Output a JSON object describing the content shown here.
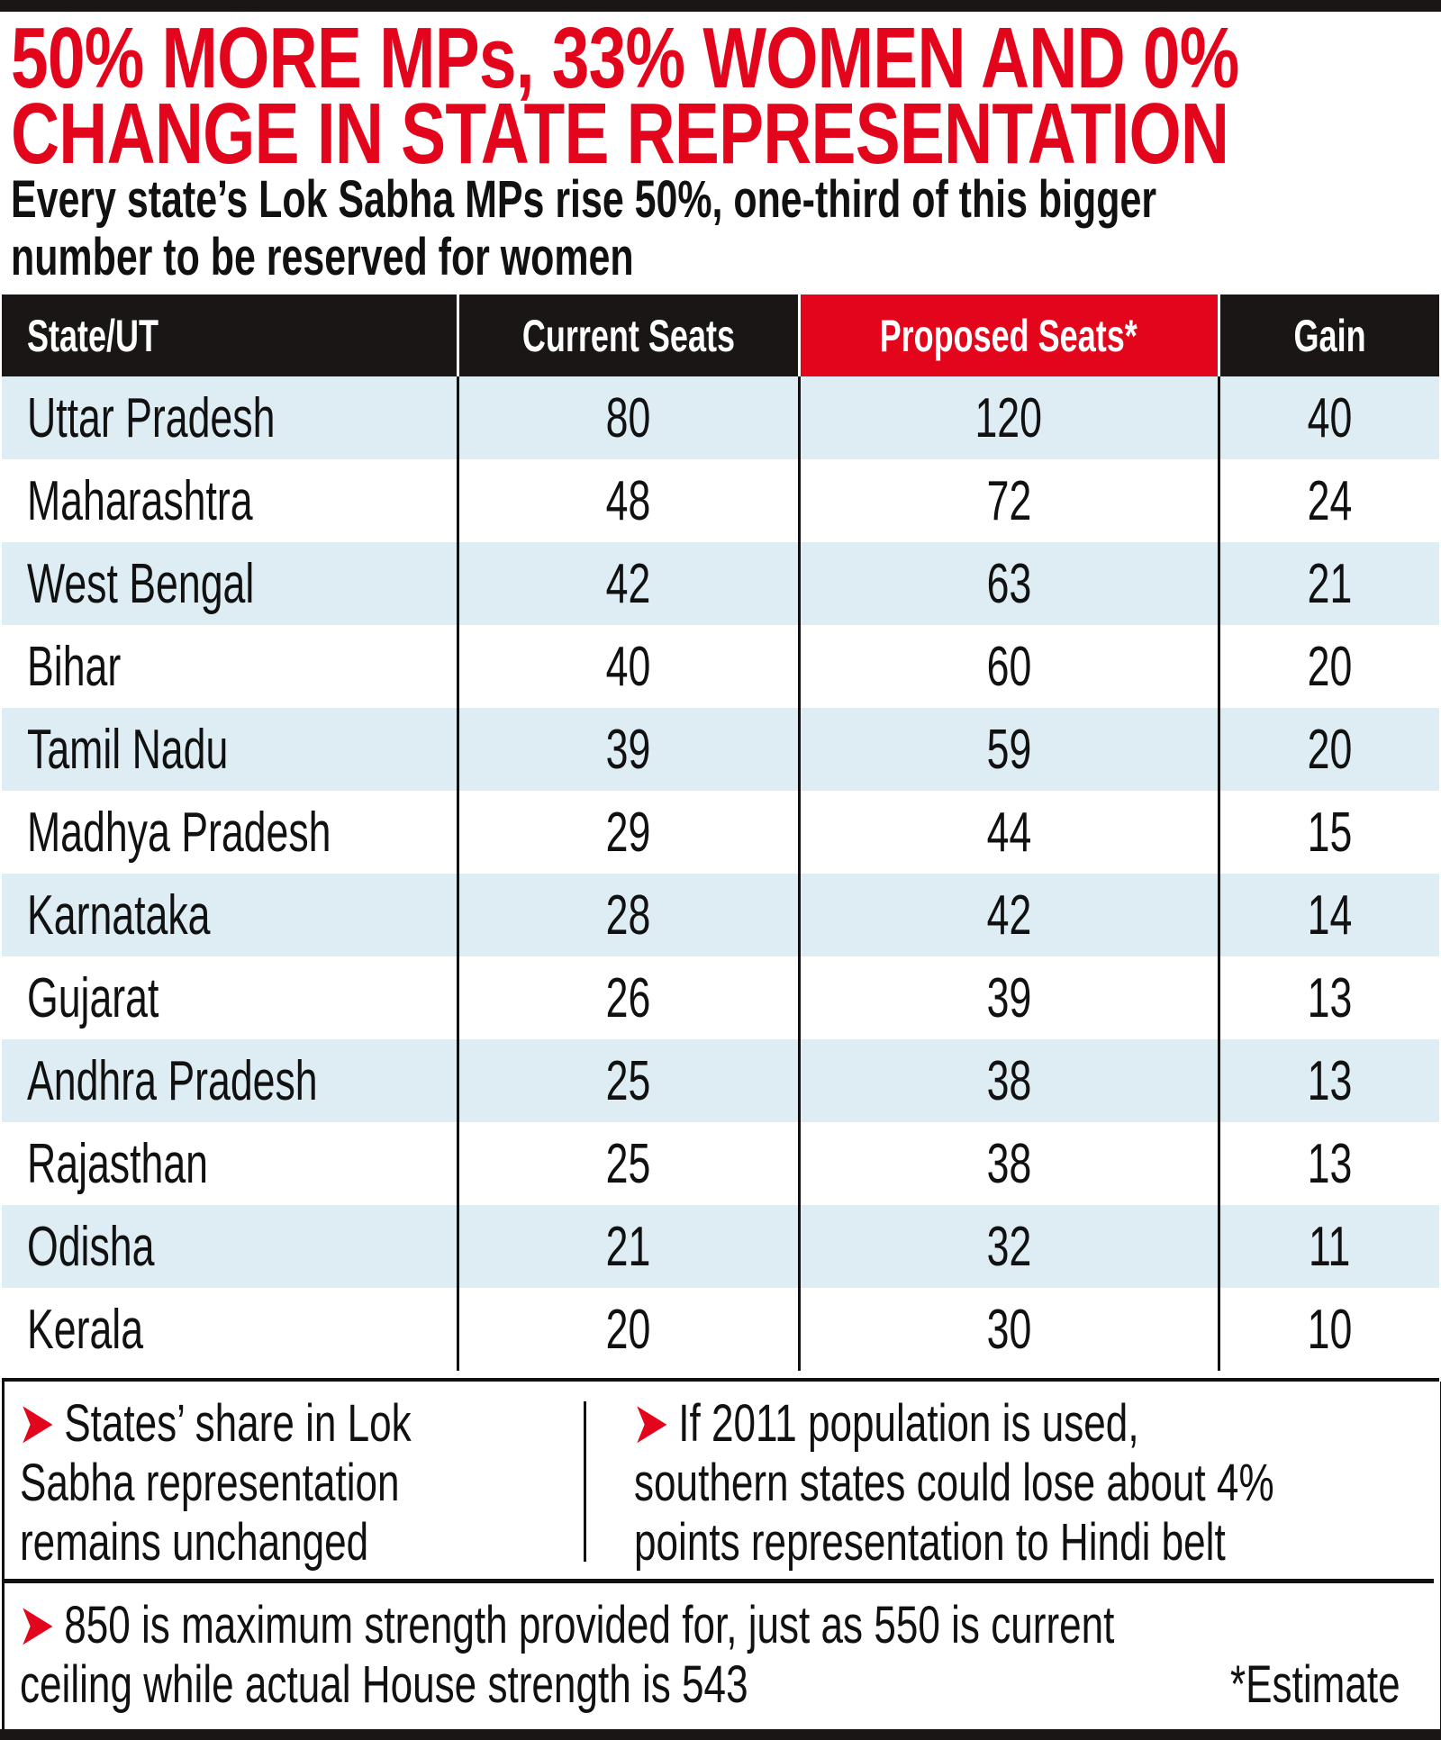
{
  "title_lines": [
    "50% MORE MPs, 33% WOMEN AND 0%",
    "CHANGE IN STATE REPRESENTATION"
  ],
  "subtitle_lines": [
    "Every state’s Lok Sabha MPs rise 50%, one-third of this bigger",
    "number to be reserved for women"
  ],
  "colors": {
    "accent_red": "#e3051b",
    "header_black": "#1a1616",
    "row_alt": "#ddedf3"
  },
  "table": {
    "headers": [
      "State/UT",
      "Current Seats",
      "Proposed Seats*",
      "Gain"
    ],
    "rows": [
      [
        "Uttar Pradesh",
        "80",
        "120",
        "40"
      ],
      [
        "Maharashtra",
        "48",
        "72",
        "24"
      ],
      [
        "West Bengal",
        "42",
        "63",
        "21"
      ],
      [
        "Bihar",
        "40",
        "60",
        "20"
      ],
      [
        "Tamil Nadu",
        "39",
        "59",
        "20"
      ],
      [
        "Madhya Pradesh",
        "29",
        "44",
        "15"
      ],
      [
        "Karnataka",
        "28",
        "42",
        "14"
      ],
      [
        "Gujarat",
        "26",
        "39",
        "13"
      ],
      [
        "Andhra Pradesh",
        "25",
        "38",
        "13"
      ],
      [
        "Rajasthan",
        "25",
        "38",
        "13"
      ],
      [
        "Odisha",
        "21",
        "32",
        "11"
      ],
      [
        "Kerala",
        "20",
        "30",
        "10"
      ]
    ]
  },
  "notes": {
    "left": [
      "States’ share in Lok",
      "Sabha representation",
      "remains unchanged"
    ],
    "right": [
      "If 2011 population  is used,",
      "southern states could lose about 4%",
      "points representation to Hindi belt"
    ],
    "bottom": [
      "850 is maximum strength provided for, just as 550 is current",
      "ceiling while actual House strength is 543"
    ],
    "footnote": "*Estimate",
    "bullet_icon": "red-arrowhead"
  }
}
